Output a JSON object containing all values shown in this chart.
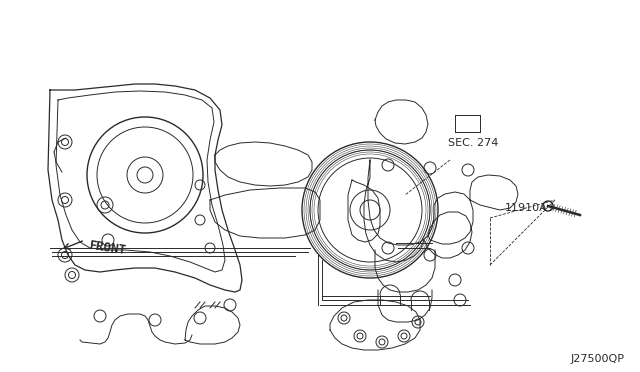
{
  "bg_color": "#ffffff",
  "line_color": "#2a2a2a",
  "label_sec274": "SEC. 274",
  "label_11910a": "11910A",
  "label_front": "FRONT",
  "label_code": "J27500QP",
  "lw": 0.7,
  "font_size_label": 8,
  "font_size_code": 8,
  "fig_w": 6.4,
  "fig_h": 3.72,
  "dpi": 100
}
